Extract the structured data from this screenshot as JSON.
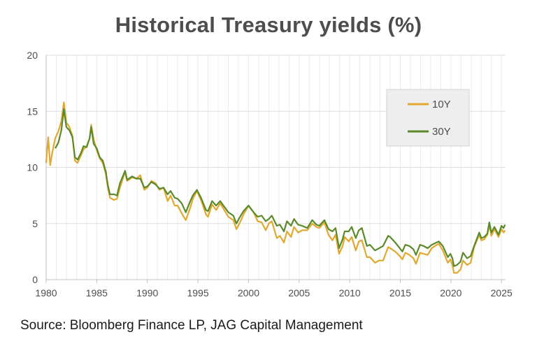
{
  "chart_data": {
    "type": "line",
    "title": "Historical Treasury yields (%)",
    "xlabel": "",
    "ylabel": "",
    "xlim": [
      1980,
      2025.4
    ],
    "ylim": [
      0,
      20
    ],
    "x_ticks": [
      1980,
      1985,
      1990,
      1995,
      2000,
      2005,
      2010,
      2015,
      2020,
      2025
    ],
    "y_ticks": [
      0,
      5,
      10,
      15,
      20
    ],
    "grid": true,
    "legend_position": "top-right",
    "series": [
      {
        "name": "10Y",
        "color": "#e0a82e",
        "points": [
          [
            1980,
            10.4
          ],
          [
            1980.2,
            12.7
          ],
          [
            1980.4,
            10.2
          ],
          [
            1980.6,
            11.3
          ],
          [
            1980.9,
            12.6
          ],
          [
            1981.2,
            13.2
          ],
          [
            1981.5,
            14.1
          ],
          [
            1981.75,
            15.8
          ],
          [
            1982.0,
            14.0
          ],
          [
            1982.3,
            13.6
          ],
          [
            1982.6,
            12.8
          ],
          [
            1982.85,
            10.6
          ],
          [
            1983.1,
            10.4
          ],
          [
            1983.4,
            11.0
          ],
          [
            1983.7,
            11.6
          ],
          [
            1984.0,
            11.9
          ],
          [
            1984.3,
            12.6
          ],
          [
            1984.45,
            13.8
          ],
          [
            1984.7,
            12.5
          ],
          [
            1985.0,
            11.5
          ],
          [
            1985.3,
            10.8
          ],
          [
            1985.6,
            10.4
          ],
          [
            1985.9,
            9.4
          ],
          [
            1986.1,
            8.2
          ],
          [
            1986.3,
            7.3
          ],
          [
            1986.7,
            7.1
          ],
          [
            1987.0,
            7.2
          ],
          [
            1987.3,
            8.2
          ],
          [
            1987.8,
            9.6
          ],
          [
            1988.0,
            8.8
          ],
          [
            1988.5,
            9.1
          ],
          [
            1988.9,
            9.0
          ],
          [
            1989.3,
            9.3
          ],
          [
            1989.7,
            8.0
          ],
          [
            1990.0,
            8.2
          ],
          [
            1990.4,
            8.8
          ],
          [
            1990.8,
            8.6
          ],
          [
            1991.2,
            8.0
          ],
          [
            1991.6,
            8.2
          ],
          [
            1992.0,
            7.0
          ],
          [
            1992.3,
            7.5
          ],
          [
            1992.7,
            6.6
          ],
          [
            1993.0,
            6.6
          ],
          [
            1993.4,
            5.9
          ],
          [
            1993.8,
            5.3
          ],
          [
            1994.2,
            6.3
          ],
          [
            1994.5,
            7.2
          ],
          [
            1994.9,
            7.9
          ],
          [
            1995.3,
            7.1
          ],
          [
            1995.8,
            5.8
          ],
          [
            1996.0,
            5.6
          ],
          [
            1996.4,
            6.7
          ],
          [
            1996.8,
            6.2
          ],
          [
            1997.2,
            6.8
          ],
          [
            1997.6,
            6.2
          ],
          [
            1998.0,
            5.6
          ],
          [
            1998.5,
            5.3
          ],
          [
            1998.8,
            4.5
          ],
          [
            1999.1,
            5.0
          ],
          [
            1999.5,
            5.8
          ],
          [
            2000.0,
            6.6
          ],
          [
            2000.5,
            6.0
          ],
          [
            2000.9,
            5.2
          ],
          [
            2001.3,
            5.1
          ],
          [
            2001.7,
            4.4
          ],
          [
            2002.0,
            5.0
          ],
          [
            2002.3,
            5.2
          ],
          [
            2002.8,
            3.7
          ],
          [
            2003.1,
            3.9
          ],
          [
            2003.5,
            3.3
          ],
          [
            2003.8,
            4.3
          ],
          [
            2004.2,
            3.8
          ],
          [
            2004.5,
            4.7
          ],
          [
            2004.9,
            4.2
          ],
          [
            2005.3,
            4.4
          ],
          [
            2005.8,
            4.4
          ],
          [
            2006.3,
            5.0
          ],
          [
            2006.7,
            4.7
          ],
          [
            2007.0,
            4.6
          ],
          [
            2007.5,
            5.1
          ],
          [
            2007.9,
            4.0
          ],
          [
            2008.3,
            3.5
          ],
          [
            2008.6,
            4.0
          ],
          [
            2008.95,
            2.3
          ],
          [
            2009.3,
            3.0
          ],
          [
            2009.5,
            3.8
          ],
          [
            2009.9,
            3.4
          ],
          [
            2010.2,
            3.8
          ],
          [
            2010.6,
            2.6
          ],
          [
            2010.9,
            3.4
          ],
          [
            2011.2,
            3.5
          ],
          [
            2011.7,
            2.0
          ],
          [
            2012.0,
            2.0
          ],
          [
            2012.5,
            1.5
          ],
          [
            2012.9,
            1.7
          ],
          [
            2013.3,
            1.7
          ],
          [
            2013.8,
            2.9
          ],
          [
            2014.0,
            2.8
          ],
          [
            2014.5,
            2.5
          ],
          [
            2014.95,
            2.1
          ],
          [
            2015.2,
            1.8
          ],
          [
            2015.5,
            2.4
          ],
          [
            2015.9,
            2.2
          ],
          [
            2016.3,
            1.9
          ],
          [
            2016.55,
            1.4
          ],
          [
            2016.95,
            2.4
          ],
          [
            2017.3,
            2.3
          ],
          [
            2017.7,
            2.2
          ],
          [
            2018.1,
            2.8
          ],
          [
            2018.8,
            3.2
          ],
          [
            2019.2,
            2.6
          ],
          [
            2019.7,
            1.5
          ],
          [
            2019.95,
            1.8
          ],
          [
            2020.15,
            1.3
          ],
          [
            2020.3,
            0.6
          ],
          [
            2020.6,
            0.6
          ],
          [
            2020.95,
            0.9
          ],
          [
            2021.2,
            1.7
          ],
          [
            2021.6,
            1.3
          ],
          [
            2021.95,
            1.5
          ],
          [
            2022.3,
            2.9
          ],
          [
            2022.8,
            4.0
          ],
          [
            2023.0,
            3.5
          ],
          [
            2023.3,
            3.6
          ],
          [
            2023.6,
            4.0
          ],
          [
            2023.8,
            4.9
          ],
          [
            2024.0,
            3.9
          ],
          [
            2024.3,
            4.5
          ],
          [
            2024.7,
            3.8
          ],
          [
            2025.0,
            4.5
          ],
          [
            2025.2,
            4.2
          ],
          [
            2025.35,
            4.4
          ]
        ]
      },
      {
        "name": "30Y",
        "color": "#5a8a2a",
        "points": [
          [
            1980.9,
            11.7
          ],
          [
            1981.2,
            12.2
          ],
          [
            1981.5,
            13.3
          ],
          [
            1981.75,
            15.2
          ],
          [
            1982.0,
            13.6
          ],
          [
            1982.3,
            13.3
          ],
          [
            1982.6,
            12.7
          ],
          [
            1982.85,
            10.9
          ],
          [
            1983.1,
            10.7
          ],
          [
            1983.4,
            11.2
          ],
          [
            1983.7,
            11.9
          ],
          [
            1984.0,
            11.8
          ],
          [
            1984.3,
            12.6
          ],
          [
            1984.45,
            13.6
          ],
          [
            1984.7,
            12.1
          ],
          [
            1985.0,
            11.7
          ],
          [
            1985.3,
            10.9
          ],
          [
            1985.6,
            10.6
          ],
          [
            1985.9,
            9.6
          ],
          [
            1986.1,
            8.4
          ],
          [
            1986.3,
            7.6
          ],
          [
            1986.7,
            7.6
          ],
          [
            1987.0,
            7.5
          ],
          [
            1987.3,
            8.6
          ],
          [
            1987.8,
            9.7
          ],
          [
            1988.0,
            8.9
          ],
          [
            1988.5,
            9.2
          ],
          [
            1988.9,
            9.0
          ],
          [
            1989.3,
            9.0
          ],
          [
            1989.7,
            8.2
          ],
          [
            1990.0,
            8.3
          ],
          [
            1990.4,
            8.7
          ],
          [
            1990.8,
            8.5
          ],
          [
            1991.2,
            8.1
          ],
          [
            1991.6,
            8.2
          ],
          [
            1992.0,
            7.6
          ],
          [
            1992.3,
            7.9
          ],
          [
            1992.7,
            7.3
          ],
          [
            1993.0,
            7.2
          ],
          [
            1993.4,
            6.8
          ],
          [
            1993.8,
            6.0
          ],
          [
            1994.2,
            6.9
          ],
          [
            1994.5,
            7.5
          ],
          [
            1994.9,
            8.0
          ],
          [
            1995.3,
            7.3
          ],
          [
            1995.8,
            6.2
          ],
          [
            1996.0,
            6.1
          ],
          [
            1996.4,
            7.0
          ],
          [
            1996.8,
            6.6
          ],
          [
            1997.2,
            7.0
          ],
          [
            1997.6,
            6.5
          ],
          [
            1998.0,
            6.0
          ],
          [
            1998.5,
            5.7
          ],
          [
            1998.8,
            5.0
          ],
          [
            1999.1,
            5.5
          ],
          [
            1999.5,
            6.1
          ],
          [
            2000.0,
            6.6
          ],
          [
            2000.5,
            6.0
          ],
          [
            2000.9,
            5.6
          ],
          [
            2001.3,
            5.7
          ],
          [
            2001.7,
            5.2
          ],
          [
            2002.0,
            5.4
          ],
          [
            2002.3,
            5.7
          ],
          [
            2002.8,
            4.8
          ],
          [
            2003.1,
            4.9
          ],
          [
            2003.5,
            4.3
          ],
          [
            2003.8,
            5.2
          ],
          [
            2004.2,
            4.8
          ],
          [
            2004.5,
            5.4
          ],
          [
            2004.9,
            4.9
          ],
          [
            2005.3,
            4.8
          ],
          [
            2005.8,
            4.6
          ],
          [
            2006.3,
            5.3
          ],
          [
            2006.7,
            4.9
          ],
          [
            2007.0,
            4.8
          ],
          [
            2007.5,
            5.3
          ],
          [
            2007.9,
            4.5
          ],
          [
            2008.3,
            4.3
          ],
          [
            2008.6,
            4.6
          ],
          [
            2008.95,
            2.8
          ],
          [
            2009.3,
            3.6
          ],
          [
            2009.5,
            4.3
          ],
          [
            2009.9,
            4.3
          ],
          [
            2010.2,
            4.7
          ],
          [
            2010.6,
            3.7
          ],
          [
            2010.9,
            4.4
          ],
          [
            2011.2,
            4.6
          ],
          [
            2011.7,
            3.0
          ],
          [
            2012.0,
            3.1
          ],
          [
            2012.5,
            2.6
          ],
          [
            2012.9,
            2.8
          ],
          [
            2013.3,
            3.0
          ],
          [
            2013.8,
            3.9
          ],
          [
            2014.0,
            3.8
          ],
          [
            2014.5,
            3.3
          ],
          [
            2014.95,
            2.8
          ],
          [
            2015.2,
            2.5
          ],
          [
            2015.5,
            3.1
          ],
          [
            2015.9,
            3.0
          ],
          [
            2016.3,
            2.7
          ],
          [
            2016.55,
            2.2
          ],
          [
            2016.95,
            3.1
          ],
          [
            2017.3,
            3.0
          ],
          [
            2017.7,
            2.8
          ],
          [
            2018.1,
            3.1
          ],
          [
            2018.8,
            3.4
          ],
          [
            2019.2,
            3.0
          ],
          [
            2019.7,
            2.0
          ],
          [
            2019.95,
            2.3
          ],
          [
            2020.15,
            1.9
          ],
          [
            2020.3,
            1.2
          ],
          [
            2020.6,
            1.3
          ],
          [
            2020.95,
            1.6
          ],
          [
            2021.2,
            2.4
          ],
          [
            2021.6,
            1.9
          ],
          [
            2021.95,
            2.1
          ],
          [
            2022.3,
            3.0
          ],
          [
            2022.8,
            4.2
          ],
          [
            2023.0,
            3.7
          ],
          [
            2023.3,
            3.8
          ],
          [
            2023.6,
            4.1
          ],
          [
            2023.8,
            5.1
          ],
          [
            2024.0,
            4.2
          ],
          [
            2024.3,
            4.7
          ],
          [
            2024.7,
            4.0
          ],
          [
            2025.0,
            4.8
          ],
          [
            2025.2,
            4.6
          ],
          [
            2025.35,
            4.9
          ]
        ]
      }
    ]
  },
  "source": "Source: Bloomberg Finance LP, JAG Capital Management"
}
